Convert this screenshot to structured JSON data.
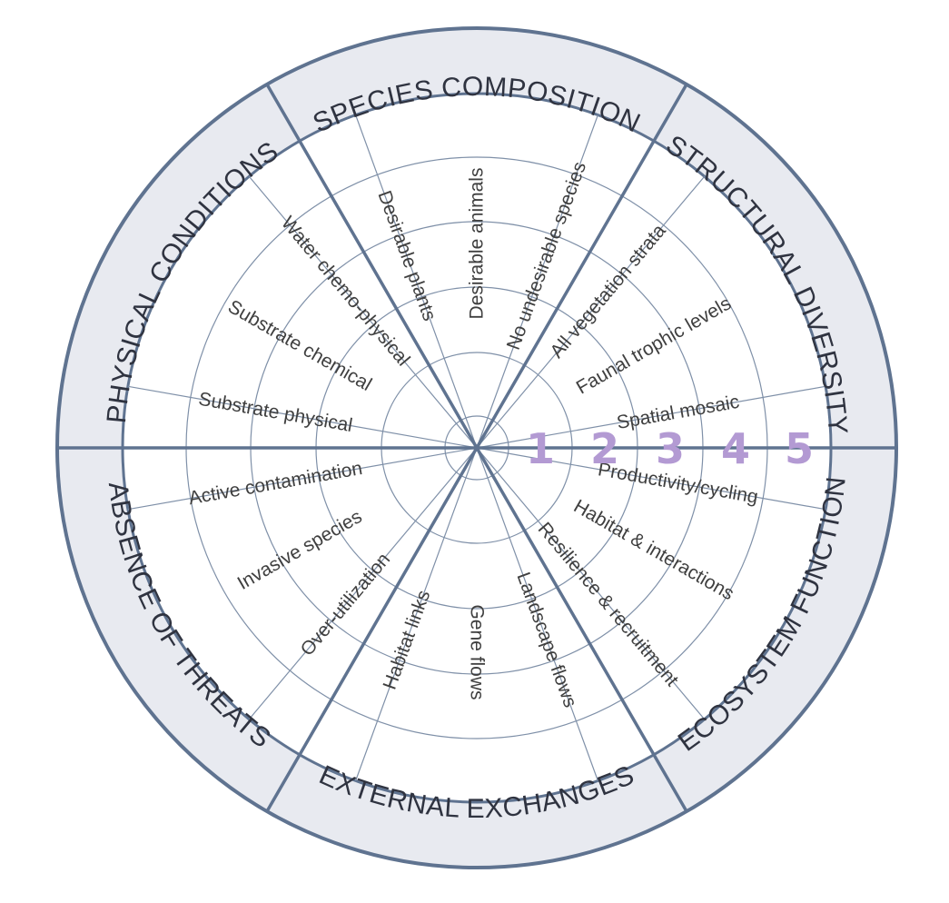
{
  "colors": {
    "ring_fill": "#e8eaf0",
    "inner_fill": "#ffffff",
    "heavy_line": "#5f7390",
    "thin_line": "#7f90a8",
    "scale_numbers": "#b39ad3",
    "text": "#3f3f3f"
  },
  "scale_numbers": [
    "1",
    "2",
    "3",
    "4",
    "5"
  ],
  "categories": [
    {
      "name": "SPECIES COMPOSITION",
      "attributes": [
        "Desirable plants",
        "Desirable animals",
        "No undesirable species"
      ]
    },
    {
      "name": "STRUCTURAL DIVERSITY",
      "attributes": [
        "All vegetation strata",
        "Faunal trophic levels",
        "Spatial mosaic"
      ]
    },
    {
      "name": "ECOSYSTEM FUNCTION",
      "attributes": [
        "Productivity/cycling",
        "Habitat & interactions",
        "Resilience & recruitment"
      ]
    },
    {
      "name": "EXTERNAL EXCHANGES",
      "attributes": [
        "Landscape flows",
        "Gene flows",
        "Habitat links"
      ]
    },
    {
      "name": "ABSENCE OF THREATS",
      "attributes": [
        "Over-utilization",
        "Invasive species",
        "Active contamination"
      ]
    },
    {
      "name": "PHYSICAL CONDITIONS",
      "attributes": [
        "Substrate physical",
        "Substrate chemical",
        "Water chemo-physical"
      ]
    }
  ]
}
